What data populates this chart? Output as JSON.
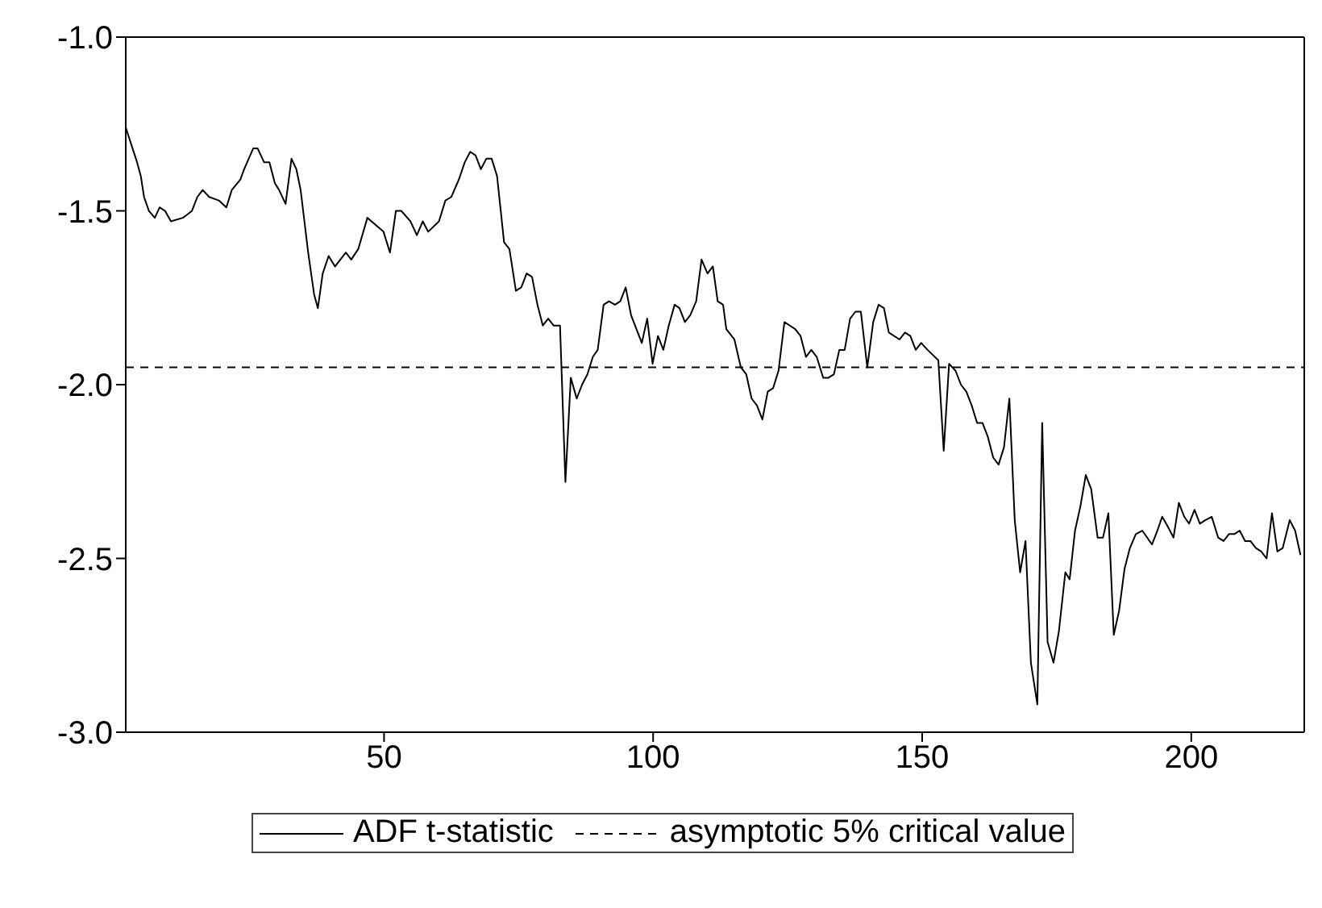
{
  "chart_data": {
    "type": "line",
    "xlim": [
      2,
      221
    ],
    "xticks": [
      50,
      100,
      150,
      200
    ],
    "ylim": [
      -3,
      -1
    ],
    "yticks": [
      {
        "value": -3,
        "label": "-3.0"
      },
      {
        "value": -2.5,
        "label": "-2.5"
      },
      {
        "value": -2,
        "label": "-2.0"
      },
      {
        "value": -1.5,
        "label": "-1.5"
      },
      {
        "value": -1,
        "label": "-1.0"
      }
    ],
    "legend": "bottom",
    "marker": "none",
    "series": [
      {
        "name": "ADF t-statistic",
        "color": "#000000",
        "line_style": "solid",
        "x": [
          2,
          4.1,
          4.8,
          5.4,
          6.3,
          7.4,
          8.3,
          9.3,
          10.4,
          12.6,
          13.5,
          14.3,
          15.3,
          16.3,
          17.5,
          19.3,
          20.7,
          21.7,
          23.3,
          24,
          25.7,
          26.5,
          27.7,
          28.7,
          29.7,
          30.5,
          31.7,
          32.8,
          33.7,
          34.5,
          35.9,
          37,
          37.7,
          38.6,
          39.7,
          40.9,
          42.9,
          43.9,
          45.2,
          46.9,
          49.9,
          51.1,
          52.2,
          53.2,
          54.9,
          56.1,
          57.2,
          58.2,
          60.2,
          61.4,
          62.5,
          63.9,
          65,
          66,
          67,
          68,
          69,
          70,
          71,
          72.3,
          73.3,
          74.5,
          75.5,
          76.5,
          77.5,
          78.5,
          79.5,
          80.5,
          81.5,
          82.7,
          83.7,
          84.7,
          85.8,
          86.8,
          87.8,
          88.8,
          89.7,
          90.8,
          91.8,
          92.9,
          93.9,
          94.9,
          95.9,
          96.9,
          97.9,
          98.9,
          99.9,
          100.9,
          101.9,
          102.9,
          104,
          104.9,
          105.9,
          106.9,
          108,
          109,
          110.1,
          111.1,
          112,
          113,
          113.6,
          115.1,
          116.3,
          117.3,
          118.3,
          119.3,
          120.3,
          121.3,
          122.3,
          123.3,
          124.4,
          125.4,
          126.4,
          127.4,
          128.4,
          129.4,
          130.4,
          131.6,
          132.6,
          133.6,
          134.6,
          135.6,
          136.6,
          137.6,
          138.6,
          139.8,
          140.9,
          141.9,
          142.9,
          143.8,
          145.8,
          146.8,
          147.8,
          148.8,
          149.8,
          151,
          153,
          154,
          155,
          156.2,
          157.2,
          158.2,
          159.2,
          160.2,
          161.2,
          162.2,
          163.2,
          164.2,
          165.2,
          166.2,
          167.2,
          168.2,
          169.2,
          170.2,
          171.4,
          172.3,
          173.3,
          174.4,
          175.4,
          176.6,
          177.4,
          178.4,
          179.4,
          180.4,
          181.4,
          182.6,
          183.6,
          184.6,
          185.6,
          186.6,
          187.6,
          188.6,
          189.7,
          190.9,
          192.7,
          193.7,
          194.6,
          195.7,
          196.7,
          197.7,
          198.7,
          199.6,
          200.6,
          201.6,
          202.6,
          203.8,
          205,
          206,
          207,
          208,
          209,
          210,
          211,
          212,
          213,
          214,
          215,
          216,
          217,
          218.3,
          219.3,
          220.3
        ],
        "values": [
          -1.26,
          -1.36,
          -1.4,
          -1.46,
          -1.5,
          -1.52,
          -1.49,
          -1.5,
          -1.53,
          -1.52,
          -1.51,
          -1.5,
          -1.46,
          -1.44,
          -1.46,
          -1.47,
          -1.49,
          -1.44,
          -1.41,
          -1.38,
          -1.32,
          -1.32,
          -1.36,
          -1.36,
          -1.42,
          -1.44,
          -1.48,
          -1.35,
          -1.38,
          -1.44,
          -1.62,
          -1.74,
          -1.78,
          -1.68,
          -1.63,
          -1.66,
          -1.62,
          -1.64,
          -1.61,
          -1.52,
          -1.56,
          -1.62,
          -1.5,
          -1.5,
          -1.53,
          -1.57,
          -1.53,
          -1.56,
          -1.53,
          -1.47,
          -1.46,
          -1.41,
          -1.36,
          -1.33,
          -1.34,
          -1.38,
          -1.35,
          -1.35,
          -1.4,
          -1.59,
          -1.61,
          -1.73,
          -1.72,
          -1.68,
          -1.69,
          -1.77,
          -1.83,
          -1.81,
          -1.83,
          -1.83,
          -2.28,
          -1.98,
          -2.04,
          -2,
          -1.97,
          -1.92,
          -1.9,
          -1.77,
          -1.76,
          -1.77,
          -1.76,
          -1.72,
          -1.8,
          -1.84,
          -1.88,
          -1.81,
          -1.94,
          -1.86,
          -1.9,
          -1.83,
          -1.77,
          -1.78,
          -1.82,
          -1.8,
          -1.76,
          -1.64,
          -1.68,
          -1.66,
          -1.76,
          -1.77,
          -1.84,
          -1.87,
          -1.95,
          -1.97,
          -2.04,
          -2.06,
          -2.1,
          -2.02,
          -2.01,
          -1.96,
          -1.82,
          -1.83,
          -1.84,
          -1.86,
          -1.92,
          -1.9,
          -1.92,
          -1.98,
          -1.98,
          -1.97,
          -1.9,
          -1.9,
          -1.81,
          -1.79,
          -1.79,
          -1.95,
          -1.82,
          -1.77,
          -1.78,
          -1.85,
          -1.87,
          -1.85,
          -1.86,
          -1.9,
          -1.88,
          -1.9,
          -1.93,
          -2.19,
          -1.94,
          -1.96,
          -2,
          -2.02,
          -2.06,
          -2.11,
          -2.11,
          -2.15,
          -2.21,
          -2.23,
          -2.18,
          -2.04,
          -2.39,
          -2.54,
          -2.45,
          -2.8,
          -2.92,
          -2.11,
          -2.74,
          -2.8,
          -2.71,
          -2.54,
          -2.56,
          -2.42,
          -2.35,
          -2.26,
          -2.3,
          -2.44,
          -2.44,
          -2.37,
          -2.72,
          -2.65,
          -2.53,
          -2.47,
          -2.43,
          -2.42,
          -2.46,
          -2.42,
          -2.38,
          -2.41,
          -2.44,
          -2.34,
          -2.38,
          -2.4,
          -2.36,
          -2.4,
          -2.39,
          -2.38,
          -2.44,
          -2.45,
          -2.43,
          -2.43,
          -2.42,
          -2.45,
          -2.45,
          -2.47,
          -2.48,
          -2.5,
          -2.37,
          -2.48,
          -2.47,
          -2.39,
          -2.42,
          -2.49
        ]
      }
    ],
    "ref_lines": [
      {
        "axis": "y",
        "value": -1.95,
        "label": "asymptotic 5% critical value",
        "color": "#000000",
        "line_style": "dashed"
      }
    ]
  }
}
